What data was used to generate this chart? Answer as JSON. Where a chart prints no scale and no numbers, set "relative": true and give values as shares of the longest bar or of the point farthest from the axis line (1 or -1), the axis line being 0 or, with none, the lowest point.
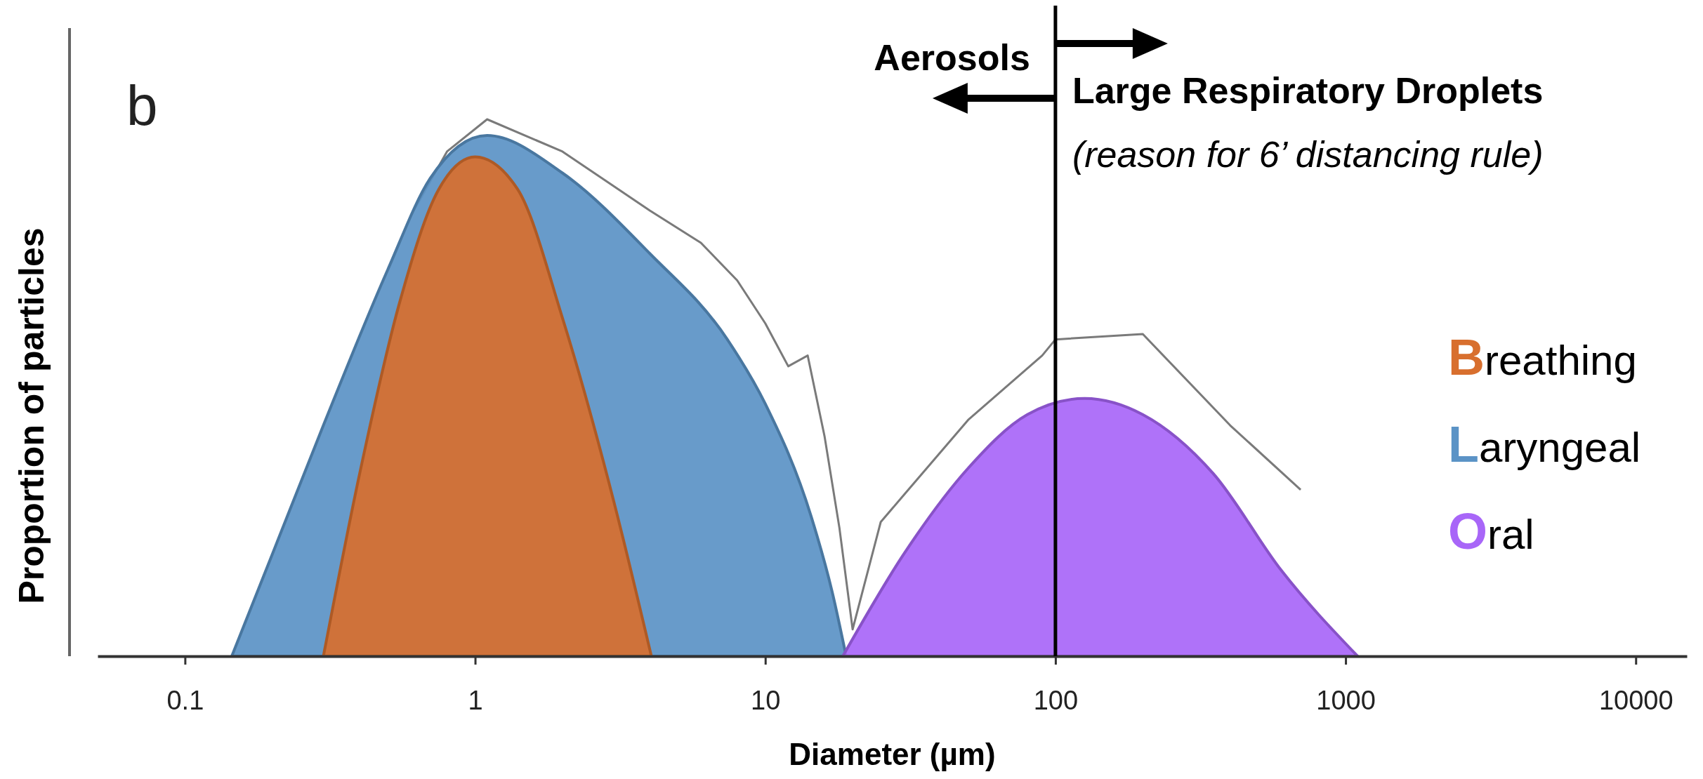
{
  "chart_data": {
    "type": "area",
    "title": "b",
    "xlabel": "Diameter (µm)",
    "ylabel": "Proportion of particles",
    "relative": true,
    "log": "x",
    "xlim": [
      0.05,
      15000
    ],
    "xticks": [
      0.1,
      1,
      10,
      100,
      1000,
      10000
    ],
    "legend": "right",
    "grid": false,
    "series": [
      {
        "type": "line",
        "color": "#7a7a7a",
        "x": [
          0.6,
          0.8,
          1.1,
          2,
          4,
          6,
          8,
          10,
          12,
          14,
          16,
          18,
          20,
          25,
          30,
          50,
          90,
          100,
          200,
          400,
          700
        ],
        "values": [
          0.82,
          0.94,
          1,
          0.94,
          0.83,
          0.77,
          0.7,
          0.62,
          0.54,
          0.56,
          0.41,
          0.24,
          0.05,
          0.25,
          0.3,
          0.44,
          0.56,
          0.59,
          0.6,
          0.43,
          0.31
        ]
      },
      {
        "name": "Laryngeal",
        "color": "#5b93c6",
        "x": [
          0.145,
          0.2,
          0.3,
          0.5,
          0.7,
          1.1,
          2,
          4,
          7.4,
          10,
          14.4,
          17,
          19
        ],
        "values": [
          0,
          0.19,
          0.43,
          0.72,
          0.89,
          0.97,
          0.9,
          0.75,
          0.59,
          0.47,
          0.26,
          0.12,
          0
        ]
      },
      {
        "name": "Breathing",
        "color": "#d86f2e",
        "x": [
          0.3,
          0.4,
          0.55,
          0.75,
          1,
          1.4,
          2,
          3,
          4.05
        ],
        "values": [
          0,
          0.34,
          0.66,
          0.87,
          0.93,
          0.87,
          0.63,
          0.29,
          0
        ]
      },
      {
        "name": "Oral",
        "color": "#a866f8",
        "x": [
          18.5,
          30,
          50,
          80,
          126,
          200,
          350,
          600,
          1100
        ],
        "values": [
          0,
          0.19,
          0.35,
          0.45,
          0.48,
          0.45,
          0.34,
          0.16,
          0
        ]
      }
    ],
    "ref_lines": [
      {
        "axis": "x",
        "value": 100,
        "color": "#000000",
        "line_style": "solid"
      }
    ],
    "annotations": [
      "Aerosols",
      "Large Respiratory Droplets",
      "(reason for 6’ distancing rule)"
    ]
  }
}
